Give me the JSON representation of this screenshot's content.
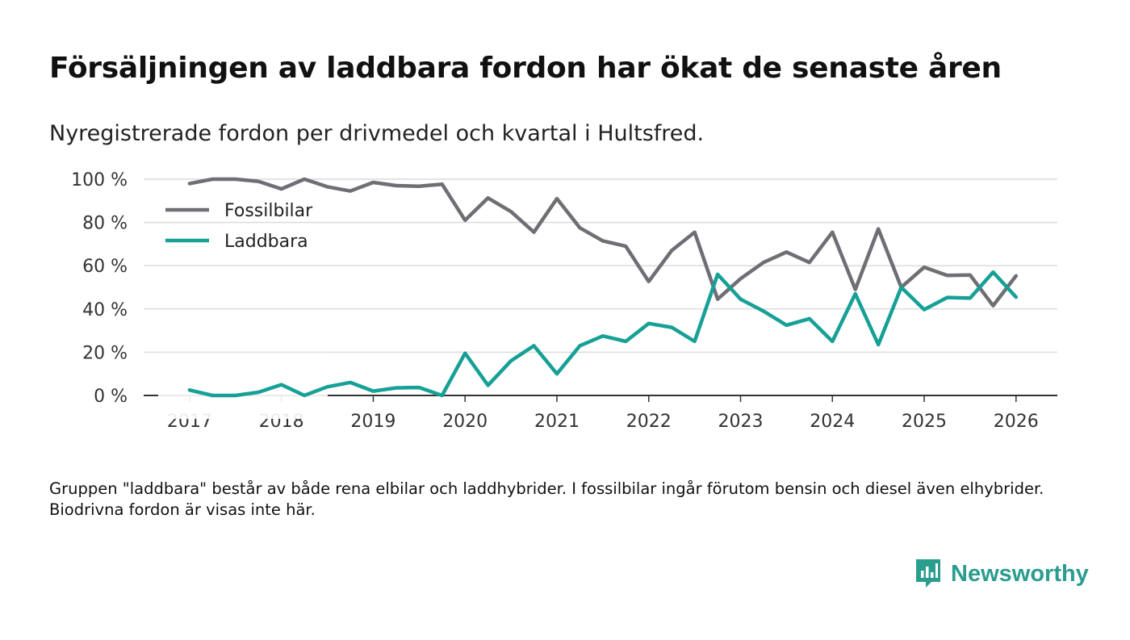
{
  "header": {
    "title": "Försäljningen av laddbara fordon har ökat de senaste åren",
    "subtitle": "Nyregistrerade fordon per drivmedel och kvartal i Hultsfred."
  },
  "footnote": "Gruppen \"laddbara\" består av både rena elbilar och laddhybrider. I fossilbilar ingår förutom bensin och diesel även elhybrider. Biodrivna fordon är visas inte här.",
  "brand": {
    "name": "Newsworthy",
    "icon": "newsworthy-logo-icon",
    "color": "#2a9d8f"
  },
  "chart_data": {
    "type": "line",
    "title": "Försäljningen av laddbara fordon har ökat de senaste åren",
    "xlabel": "",
    "ylabel": "",
    "ylim": [
      0,
      100
    ],
    "xlim": [
      2016.5,
      2026.45
    ],
    "yticks": [
      0,
      20,
      40,
      60,
      80,
      100
    ],
    "ytick_labels": [
      "0 %",
      "20 %",
      "40 %",
      "60 %",
      "80 %",
      "100 %"
    ],
    "xticks": [
      2017,
      2018,
      2019,
      2020,
      2021,
      2022,
      2023,
      2024,
      2025,
      2026
    ],
    "xtick_labels": [
      "2017",
      "2018",
      "2019",
      "2020",
      "2021",
      "2022",
      "2023",
      "2024",
      "2025",
      "2026"
    ],
    "grid": true,
    "legend_position": "top-left",
    "x": [
      2017,
      2017.25,
      2017.5,
      2017.75,
      2018,
      2018.25,
      2018.5,
      2018.75,
      2019,
      2019.25,
      2019.5,
      2019.75,
      2020,
      2020.25,
      2020.5,
      2020.75,
      2021,
      2021.25,
      2021.5,
      2021.75,
      2022,
      2022.25,
      2022.5,
      2022.75,
      2023,
      2023.25,
      2023.5,
      2023.75,
      2024,
      2024.25,
      2024.5,
      2024.75,
      2025,
      2025.25,
      2025.5,
      2025.75,
      2026
    ],
    "series": [
      {
        "name": "Fossilbilar",
        "color": "#6f6e75",
        "values": [
          98,
          100,
          100,
          99,
          95.5,
          100,
          96.5,
          94.5,
          98.5,
          97,
          96.7,
          97.7,
          81,
          91.3,
          85,
          75.5,
          91,
          77.5,
          71.5,
          69,
          52.7,
          67,
          75.5,
          44.5,
          54,
          61.5,
          66.3,
          61.5,
          75.5,
          49,
          77,
          50,
          59.3,
          55.5,
          55.7,
          41.5,
          55.3
        ]
      },
      {
        "name": "Laddbara",
        "color": "#16a096",
        "values": [
          2.5,
          0,
          0,
          1.5,
          5,
          0,
          4,
          6,
          2,
          3.5,
          3.7,
          0,
          19.5,
          4.7,
          16,
          23,
          10,
          23,
          27.5,
          25,
          33.3,
          31.5,
          25,
          56,
          44.5,
          39,
          32.5,
          35.5,
          25,
          47,
          23.5,
          50,
          39.7,
          45.3,
          45,
          57,
          45.5
        ]
      }
    ]
  }
}
